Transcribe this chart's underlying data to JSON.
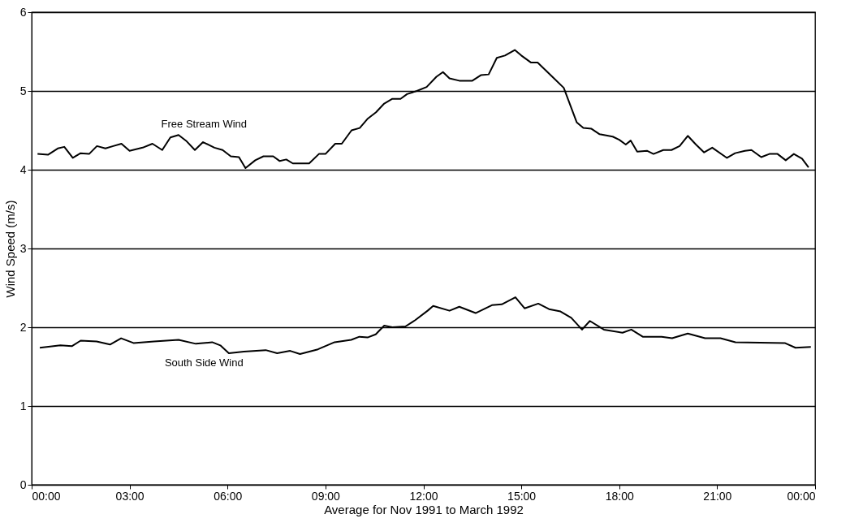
{
  "chart_data": {
    "type": "line",
    "xlabel": "Average for Nov 1991 to March 1992",
    "ylabel": "Wind Speed (m/s)",
    "xlim": [
      0,
      24
    ],
    "xticks": [
      {
        "value": 0,
        "label": "00:00"
      },
      {
        "value": 3,
        "label": "03:00"
      },
      {
        "value": 6,
        "label": "06:00"
      },
      {
        "value": 9,
        "label": "09:00"
      },
      {
        "value": 12,
        "label": "12:00"
      },
      {
        "value": 15,
        "label": "15:00"
      },
      {
        "value": 18,
        "label": "18:00"
      },
      {
        "value": 21,
        "label": "21:00"
      },
      {
        "value": 24,
        "label": "00:00"
      }
    ],
    "ylim": [
      0,
      6
    ],
    "yticks": [
      0,
      1,
      2,
      3,
      4,
      5,
      6
    ],
    "grid": "y",
    "legend": false,
    "marker": "none",
    "line_style": "solid",
    "series": [
      {
        "name": "Free Stream Wind",
        "color": "#000000",
        "x": [
          0.18,
          0.5,
          0.8,
          1.0,
          1.26,
          1.5,
          1.76,
          2.0,
          2.26,
          2.5,
          2.75,
          3.0,
          3.4,
          3.7,
          4.0,
          4.25,
          4.5,
          4.75,
          5.0,
          5.25,
          5.6,
          5.85,
          6.1,
          6.35,
          6.55,
          6.85,
          7.1,
          7.4,
          7.6,
          7.8,
          8.0,
          8.5,
          8.8,
          9.0,
          9.3,
          9.5,
          9.8,
          10.05,
          10.3,
          10.55,
          10.8,
          11.05,
          11.3,
          11.5,
          11.8,
          12.1,
          12.4,
          12.6,
          12.8,
          13.1,
          13.5,
          13.76,
          14.0,
          14.25,
          14.5,
          14.8,
          15.0,
          15.3,
          15.5,
          15.95,
          16.3,
          16.7,
          16.9,
          17.15,
          17.4,
          17.8,
          18.0,
          18.2,
          18.35,
          18.55,
          18.85,
          19.05,
          19.35,
          19.6,
          19.85,
          20.1,
          20.35,
          20.6,
          20.85,
          21.3,
          21.55,
          21.85,
          22.05,
          22.35,
          22.6,
          22.85,
          23.1,
          23.35,
          23.6,
          23.8
        ],
        "values": [
          4.2,
          4.19,
          4.27,
          4.29,
          4.15,
          4.21,
          4.2,
          4.3,
          4.27,
          4.3,
          4.33,
          4.24,
          4.28,
          4.33,
          4.25,
          4.41,
          4.44,
          4.36,
          4.25,
          4.35,
          4.28,
          4.25,
          4.17,
          4.16,
          4.02,
          4.12,
          4.17,
          4.17,
          4.11,
          4.13,
          4.08,
          4.08,
          4.2,
          4.2,
          4.33,
          4.33,
          4.5,
          4.53,
          4.65,
          4.73,
          4.84,
          4.9,
          4.9,
          4.96,
          5.0,
          5.05,
          5.18,
          5.24,
          5.16,
          5.13,
          5.13,
          5.2,
          5.21,
          5.42,
          5.45,
          5.52,
          5.45,
          5.36,
          5.36,
          5.18,
          5.04,
          4.6,
          4.53,
          4.52,
          4.45,
          4.42,
          4.38,
          4.32,
          4.37,
          4.23,
          4.24,
          4.2,
          4.25,
          4.25,
          4.3,
          4.43,
          4.32,
          4.22,
          4.28,
          4.15,
          4.21,
          4.24,
          4.25,
          4.16,
          4.2,
          4.2,
          4.12,
          4.2,
          4.14,
          4.03
        ]
      },
      {
        "name": "South Side Wind",
        "color": "#000000",
        "x": [
          0.25,
          0.88,
          1.23,
          1.5,
          1.99,
          2.4,
          2.74,
          3.12,
          3.75,
          4.5,
          5.03,
          5.53,
          5.78,
          6.04,
          6.5,
          7.17,
          7.52,
          7.92,
          8.22,
          8.77,
          9.28,
          9.79,
          10.04,
          10.29,
          10.54,
          10.8,
          11.05,
          11.45,
          11.75,
          12.13,
          12.3,
          12.8,
          13.1,
          13.6,
          14.1,
          14.4,
          14.82,
          15.1,
          15.52,
          15.85,
          16.2,
          16.53,
          16.86,
          17.1,
          17.53,
          18.1,
          18.37,
          18.72,
          19.3,
          19.62,
          20.1,
          20.63,
          21.1,
          21.56,
          23.07,
          23.4,
          23.87
        ],
        "values": [
          1.74,
          1.77,
          1.76,
          1.83,
          1.82,
          1.78,
          1.86,
          1.8,
          1.82,
          1.84,
          1.79,
          1.81,
          1.77,
          1.67,
          1.69,
          1.71,
          1.67,
          1.7,
          1.66,
          1.72,
          1.81,
          1.84,
          1.88,
          1.87,
          1.91,
          2.02,
          2.0,
          2.01,
          2.09,
          2.21,
          2.27,
          2.21,
          2.26,
          2.18,
          2.28,
          2.29,
          2.38,
          2.24,
          2.3,
          2.23,
          2.2,
          2.12,
          1.97,
          2.08,
          1.97,
          1.93,
          1.97,
          1.88,
          1.88,
          1.86,
          1.92,
          1.86,
          1.86,
          1.81,
          1.8,
          1.74,
          1.75
        ]
      }
    ]
  }
}
